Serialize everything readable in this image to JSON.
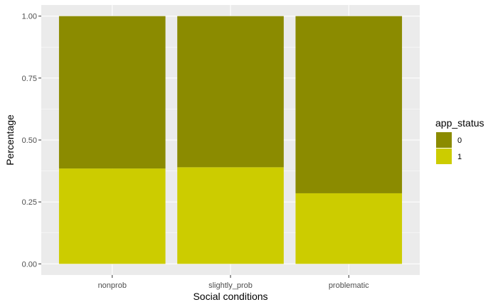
{
  "chart_data": {
    "type": "bar",
    "stacked": true,
    "title": "",
    "xlabel": "Social conditions",
    "ylabel": "Percentage",
    "categories": [
      "nonprob",
      "slightly_prob",
      "problematic"
    ],
    "series": [
      {
        "name": "1",
        "values": [
          0.385,
          0.39,
          0.285
        ],
        "color": "#CCCC00"
      },
      {
        "name": "0",
        "values": [
          0.615,
          0.61,
          0.715
        ],
        "color": "#8B8B00"
      }
    ],
    "ylim": [
      0,
      1
    ],
    "yticks": [
      "0.00",
      "0.25",
      "0.50",
      "0.75",
      "1.00"
    ],
    "grid": true,
    "panel_background": "#EBEBEB",
    "legend": {
      "title": "app_status",
      "position": "right",
      "entries": [
        {
          "label": "0",
          "color": "#8B8B00"
        },
        {
          "label": "1",
          "color": "#CCCC00"
        }
      ]
    }
  }
}
